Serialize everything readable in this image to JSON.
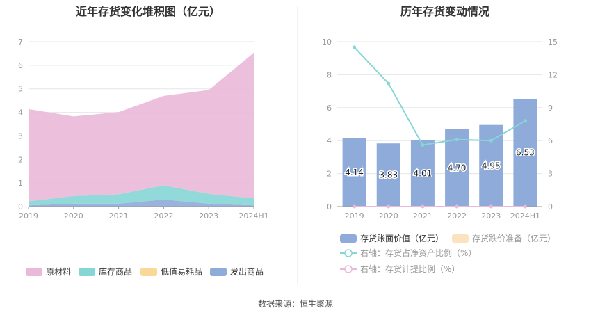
{
  "source": "数据来源：恒生聚源",
  "chart_data": [
    {
      "type": "area",
      "stacked": true,
      "title": "近年存货变化堆积图（亿元）",
      "categories": [
        "2019",
        "2020",
        "2021",
        "2022",
        "2023",
        "2024H1"
      ],
      "ylim": [
        0,
        7
      ],
      "yticks": [
        "0",
        "1",
        "2",
        "3",
        "4",
        "5",
        "6",
        "7"
      ],
      "grid": true,
      "legend_position": "bottom",
      "series": [
        {
          "name": "发出商品",
          "color": "#8eabd9",
          "values": [
            0.05,
            0.12,
            0.12,
            0.3,
            0.12,
            0.05
          ]
        },
        {
          "name": "低值易耗品",
          "color": "#fbd89a",
          "values": [
            0.0,
            0.0,
            0.0,
            0.0,
            0.0,
            0.0
          ]
        },
        {
          "name": "库存商品",
          "color": "#86d6d6",
          "values": [
            0.17,
            0.33,
            0.4,
            0.6,
            0.42,
            0.3
          ]
        },
        {
          "name": "原材料",
          "color": "#eab8d9",
          "values": [
            3.92,
            3.38,
            3.49,
            3.8,
            4.41,
            6.18
          ]
        }
      ],
      "legend_order": [
        "原材料",
        "库存商品",
        "低值易耗品",
        "发出商品"
      ]
    },
    {
      "type": "bar+line",
      "title": "历年存货变动情况",
      "categories": [
        "2019",
        "2020",
        "2021",
        "2022",
        "2023",
        "2024H1"
      ],
      "ylim": [
        0,
        10
      ],
      "yticks": [
        "0",
        "2",
        "4",
        "6",
        "8",
        "10"
      ],
      "y2lim": [
        0,
        15
      ],
      "y2ticks": [
        "0",
        "3",
        "6",
        "9",
        "12",
        "15"
      ],
      "grid": true,
      "legend_position": "bottom",
      "series": [
        {
          "name": "存货账面价值（亿元）",
          "type": "bar",
          "axis": "left",
          "color": "#8eabd9",
          "values": [
            4.14,
            3.83,
            4.01,
            4.7,
            4.95,
            6.53
          ],
          "labels": [
            "4.14",
            "3.83",
            "4.01",
            "4.70",
            "4.95",
            "6.53"
          ]
        },
        {
          "name": "存货跌价准备（亿元）",
          "type": "bar",
          "axis": "left",
          "color": "#fbe3c0",
          "values": [
            0,
            0,
            0,
            0,
            0,
            0
          ]
        },
        {
          "name": "右轴：存货占净资产比例（%）",
          "type": "line",
          "axis": "right",
          "color": "#86d6d6",
          "values": [
            14.5,
            11.2,
            5.6,
            6.1,
            6.0,
            7.8
          ]
        },
        {
          "name": "右轴：存货计提比例（%）",
          "type": "line",
          "axis": "right",
          "color": "#eab8d9",
          "values": [
            0,
            0,
            0,
            0,
            0,
            0
          ]
        }
      ]
    }
  ]
}
